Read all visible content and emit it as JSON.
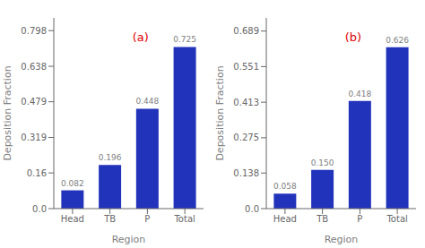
{
  "chart_data": [
    {
      "type": "bar",
      "xlabel": "Region",
      "ylabel": "Deposition Fraction",
      "categories": [
        "Head",
        "TB",
        "P",
        "Total"
      ],
      "values": [
        0.082,
        0.196,
        0.448,
        0.725
      ],
      "value_labels": [
        "0.082",
        "0.196",
        "0.448",
        "0.725"
      ],
      "color": "#2233BB",
      "ylim": [
        0.0,
        0.855
      ],
      "yticks": [
        {
          "value": 0.0,
          "label": "0.0"
        },
        {
          "value": 0.16,
          "label": "0.16"
        },
        0.319,
        0.479,
        0.638,
        0.798
      ],
      "data_labels": true,
      "grid": false,
      "annotations": [
        {
          "text": "(a)",
          "color": "#DD0000"
        }
      ]
    },
    {
      "type": "bar",
      "xlabel": "Region",
      "ylabel": "Deposition Fraction",
      "categories": [
        "Head",
        "TB",
        "P",
        "Total"
      ],
      "values": [
        0.058,
        0.15,
        0.418,
        0.626
      ],
      "value_labels": [
        "0.058",
        "0.150",
        "0.418",
        "0.626"
      ],
      "color": "#2233BB",
      "ylim": [
        0.0,
        0.74
      ],
      "yticks": [
        {
          "value": 0.0,
          "label": "0.0"
        },
        0.138,
        0.275,
        0.413,
        0.551,
        0.689
      ],
      "data_labels": true,
      "grid": false,
      "annotations": [
        {
          "text": "(b)",
          "color": "#DD0000"
        }
      ]
    }
  ]
}
